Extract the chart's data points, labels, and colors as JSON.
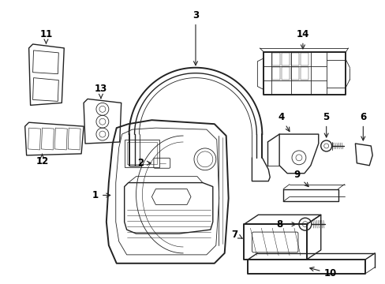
{
  "bg_color": "#ffffff",
  "line_color": "#222222",
  "lw_main": 1.0,
  "lw_thin": 0.6,
  "lw_thick": 1.4
}
